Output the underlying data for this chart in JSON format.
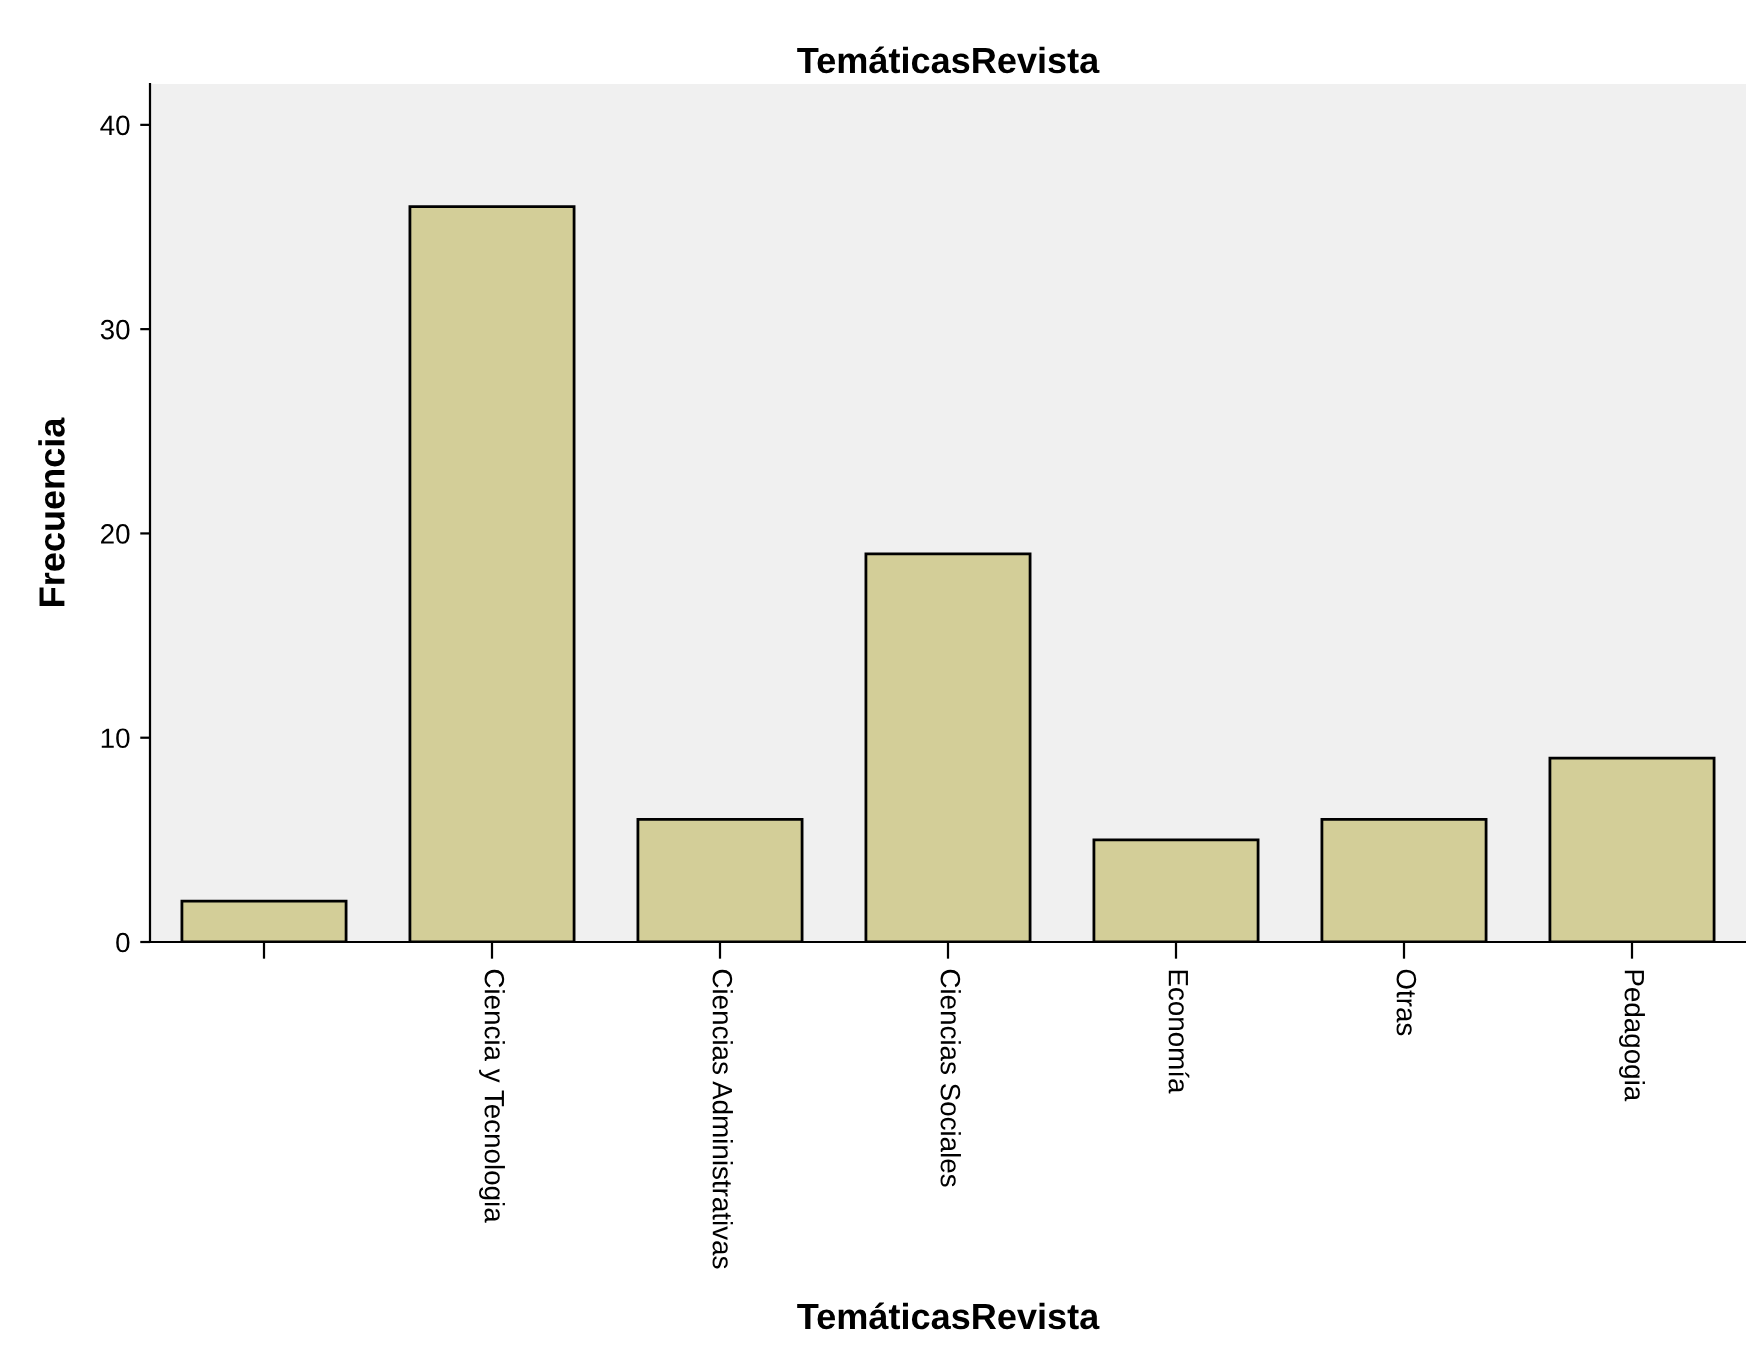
{
  "chart_data": {
    "type": "bar",
    "title": "TemáticasRevista",
    "xlabel": "TemáticasRevista",
    "ylabel": "Frecuencia",
    "categories": [
      null,
      "Ciencia y Tecnologia",
      "Ciencias Administrativas",
      "Ciencias Sociales",
      "Economía",
      "Otras",
      "Pedagogia"
    ],
    "values": [
      2,
      36,
      6,
      19,
      5,
      6,
      9
    ],
    "color": "#d3ce98",
    "ylim": [
      0,
      42
    ],
    "yticks": [
      0,
      10,
      20,
      30,
      40
    ],
    "grid": false,
    "legend": false
  }
}
